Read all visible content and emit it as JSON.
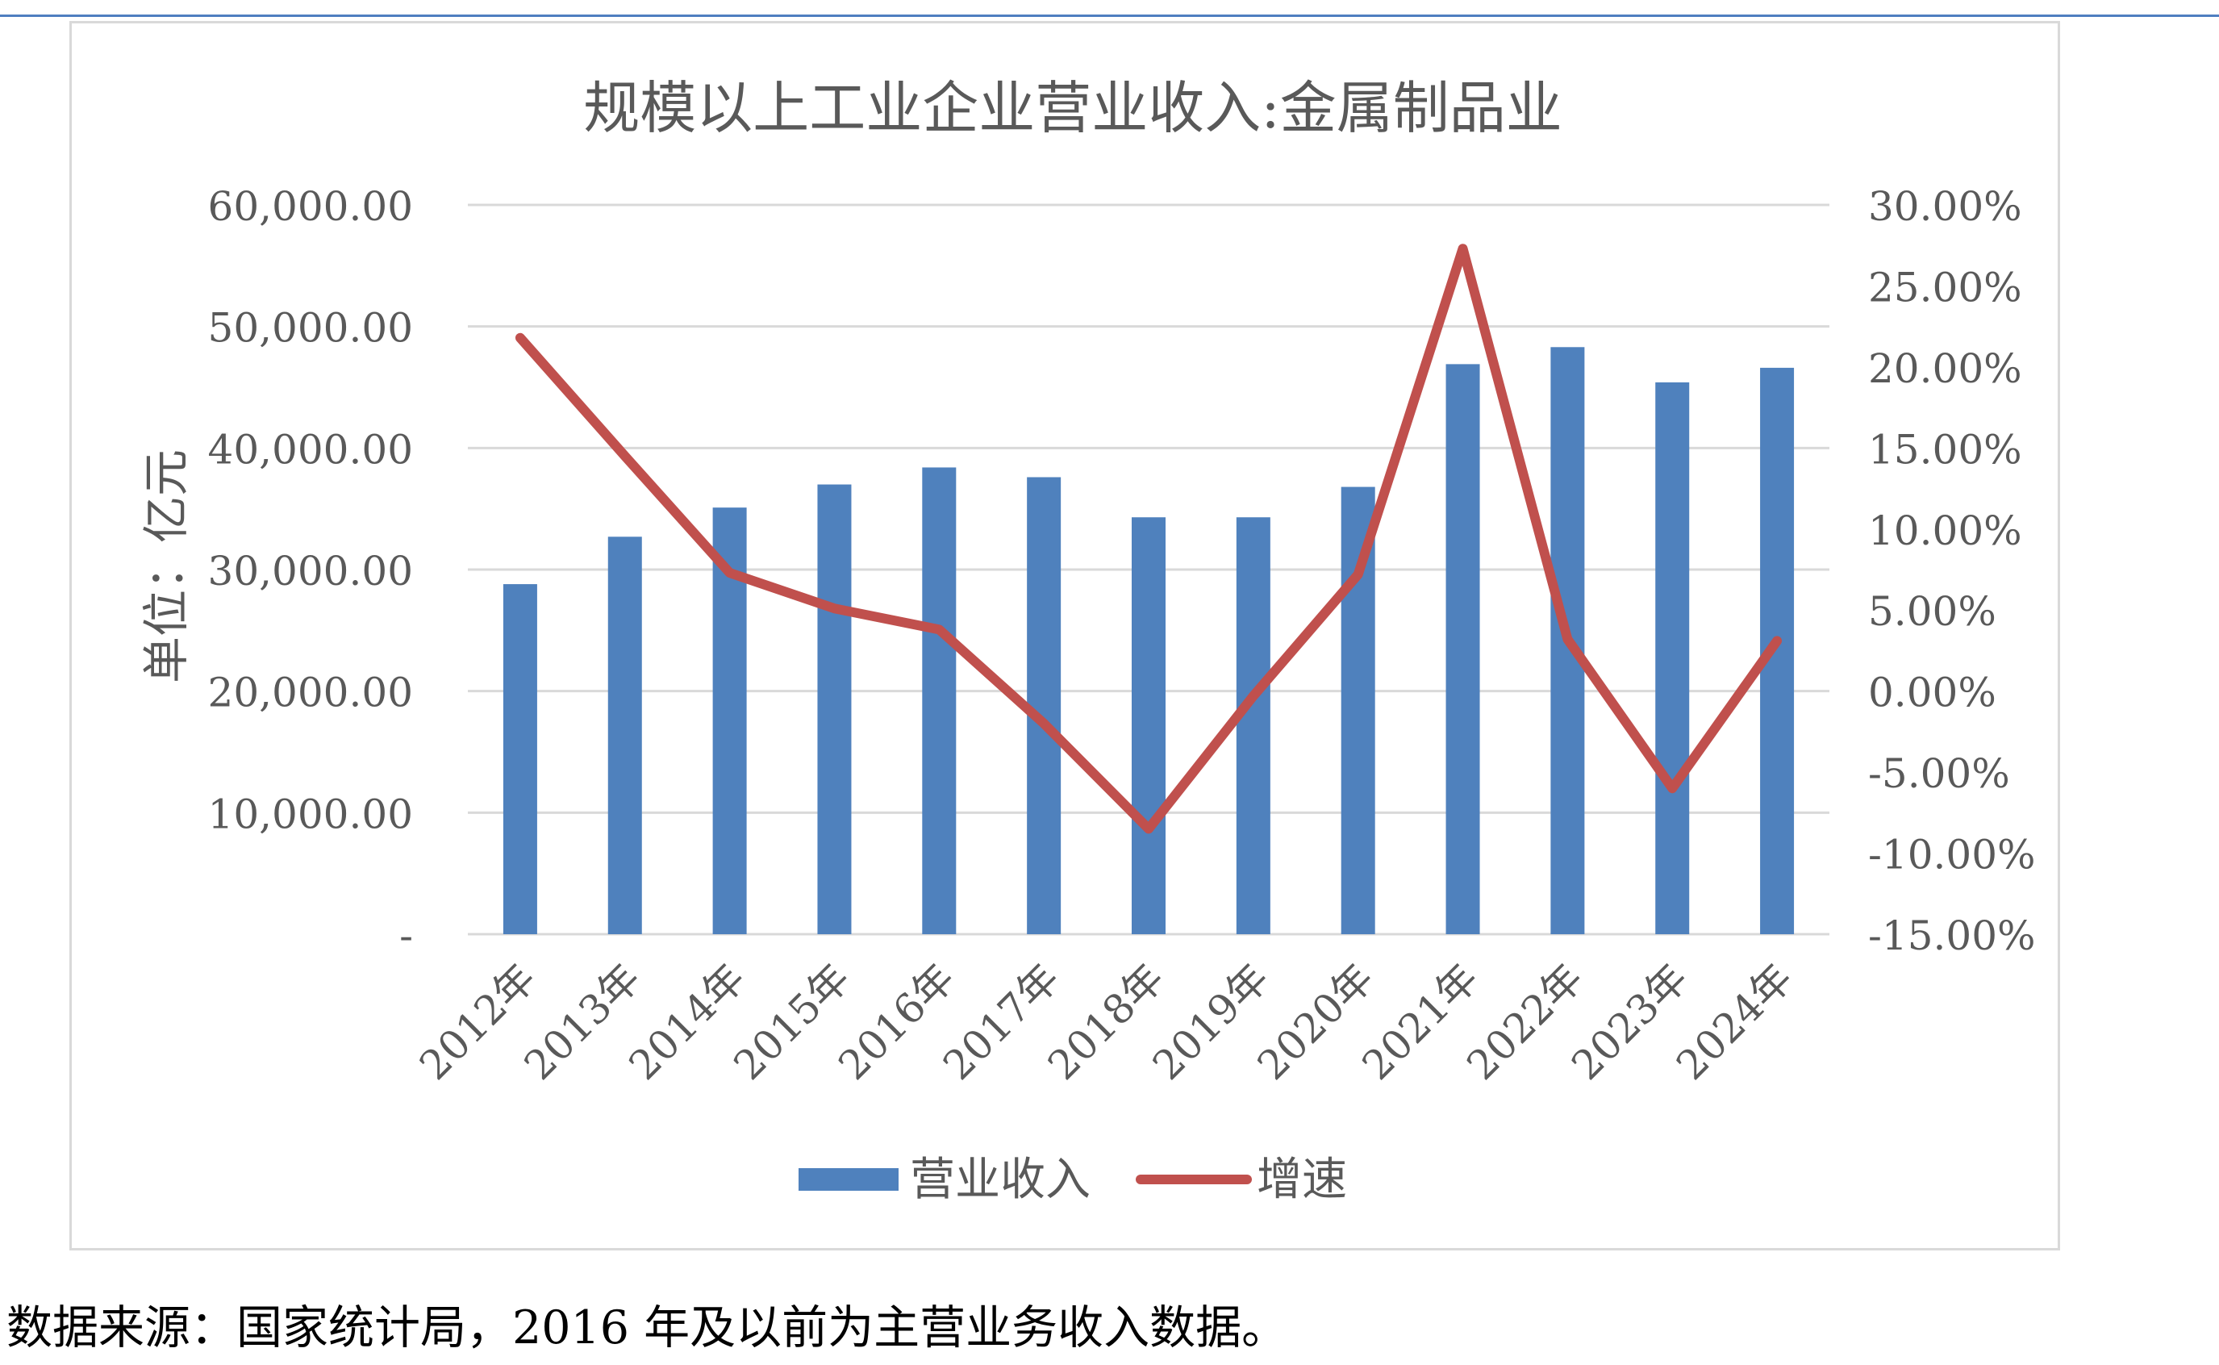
{
  "chart_data": {
    "type": "bar",
    "title": "规模以上工业企业营业收入:金属制品业",
    "ylabel": "单位：亿元",
    "categories": [
      "2012年",
      "2013年",
      "2014年",
      "2015年",
      "2016年",
      "2017年",
      "2018年",
      "2019年",
      "2020年",
      "2021年",
      "2022年",
      "2023年",
      "2024年"
    ],
    "series": [
      {
        "name": "营业收入",
        "chart_type": "bar",
        "axis": "left",
        "color": "#4f81bd",
        "values": [
          28800,
          32700,
          35100,
          37000,
          38400,
          37600,
          34300,
          34300,
          36800,
          46900,
          48300,
          45400,
          46600
        ]
      },
      {
        "name": "增速",
        "chart_type": "line",
        "axis": "right",
        "color": "#c0504d",
        "values": [
          21.8,
          14.5,
          7.3,
          5.1,
          3.8,
          -2.0,
          -8.5,
          -0.3,
          7.2,
          27.3,
          3.2,
          -6.0,
          3.1
        ]
      }
    ],
    "y_left": {
      "ylim": [
        0,
        60000
      ],
      "ticks": [
        0,
        10000,
        20000,
        30000,
        40000,
        50000,
        60000
      ],
      "tick_labels": [
        "-",
        "10,000.00",
        "20,000.00",
        "30,000.00",
        "40,000.00",
        "50,000.00",
        "60,000.00"
      ]
    },
    "y_right": {
      "ylim": [
        -15,
        30
      ],
      "ticks": [
        -15,
        -10,
        -5,
        0,
        5,
        10,
        15,
        20,
        25,
        30
      ],
      "tick_labels": [
        "-15.00%",
        "-10.00%",
        "-5.00%",
        "0.00%",
        "5.00%",
        "10.00%",
        "15.00%",
        "20.00%",
        "25.00%",
        "30.00%"
      ]
    },
    "grid": true,
    "legend_position": "bottom"
  },
  "footer": {
    "source_note": "数据来源：国家统计局，2016 年及以前为主营业务收入数据。"
  }
}
